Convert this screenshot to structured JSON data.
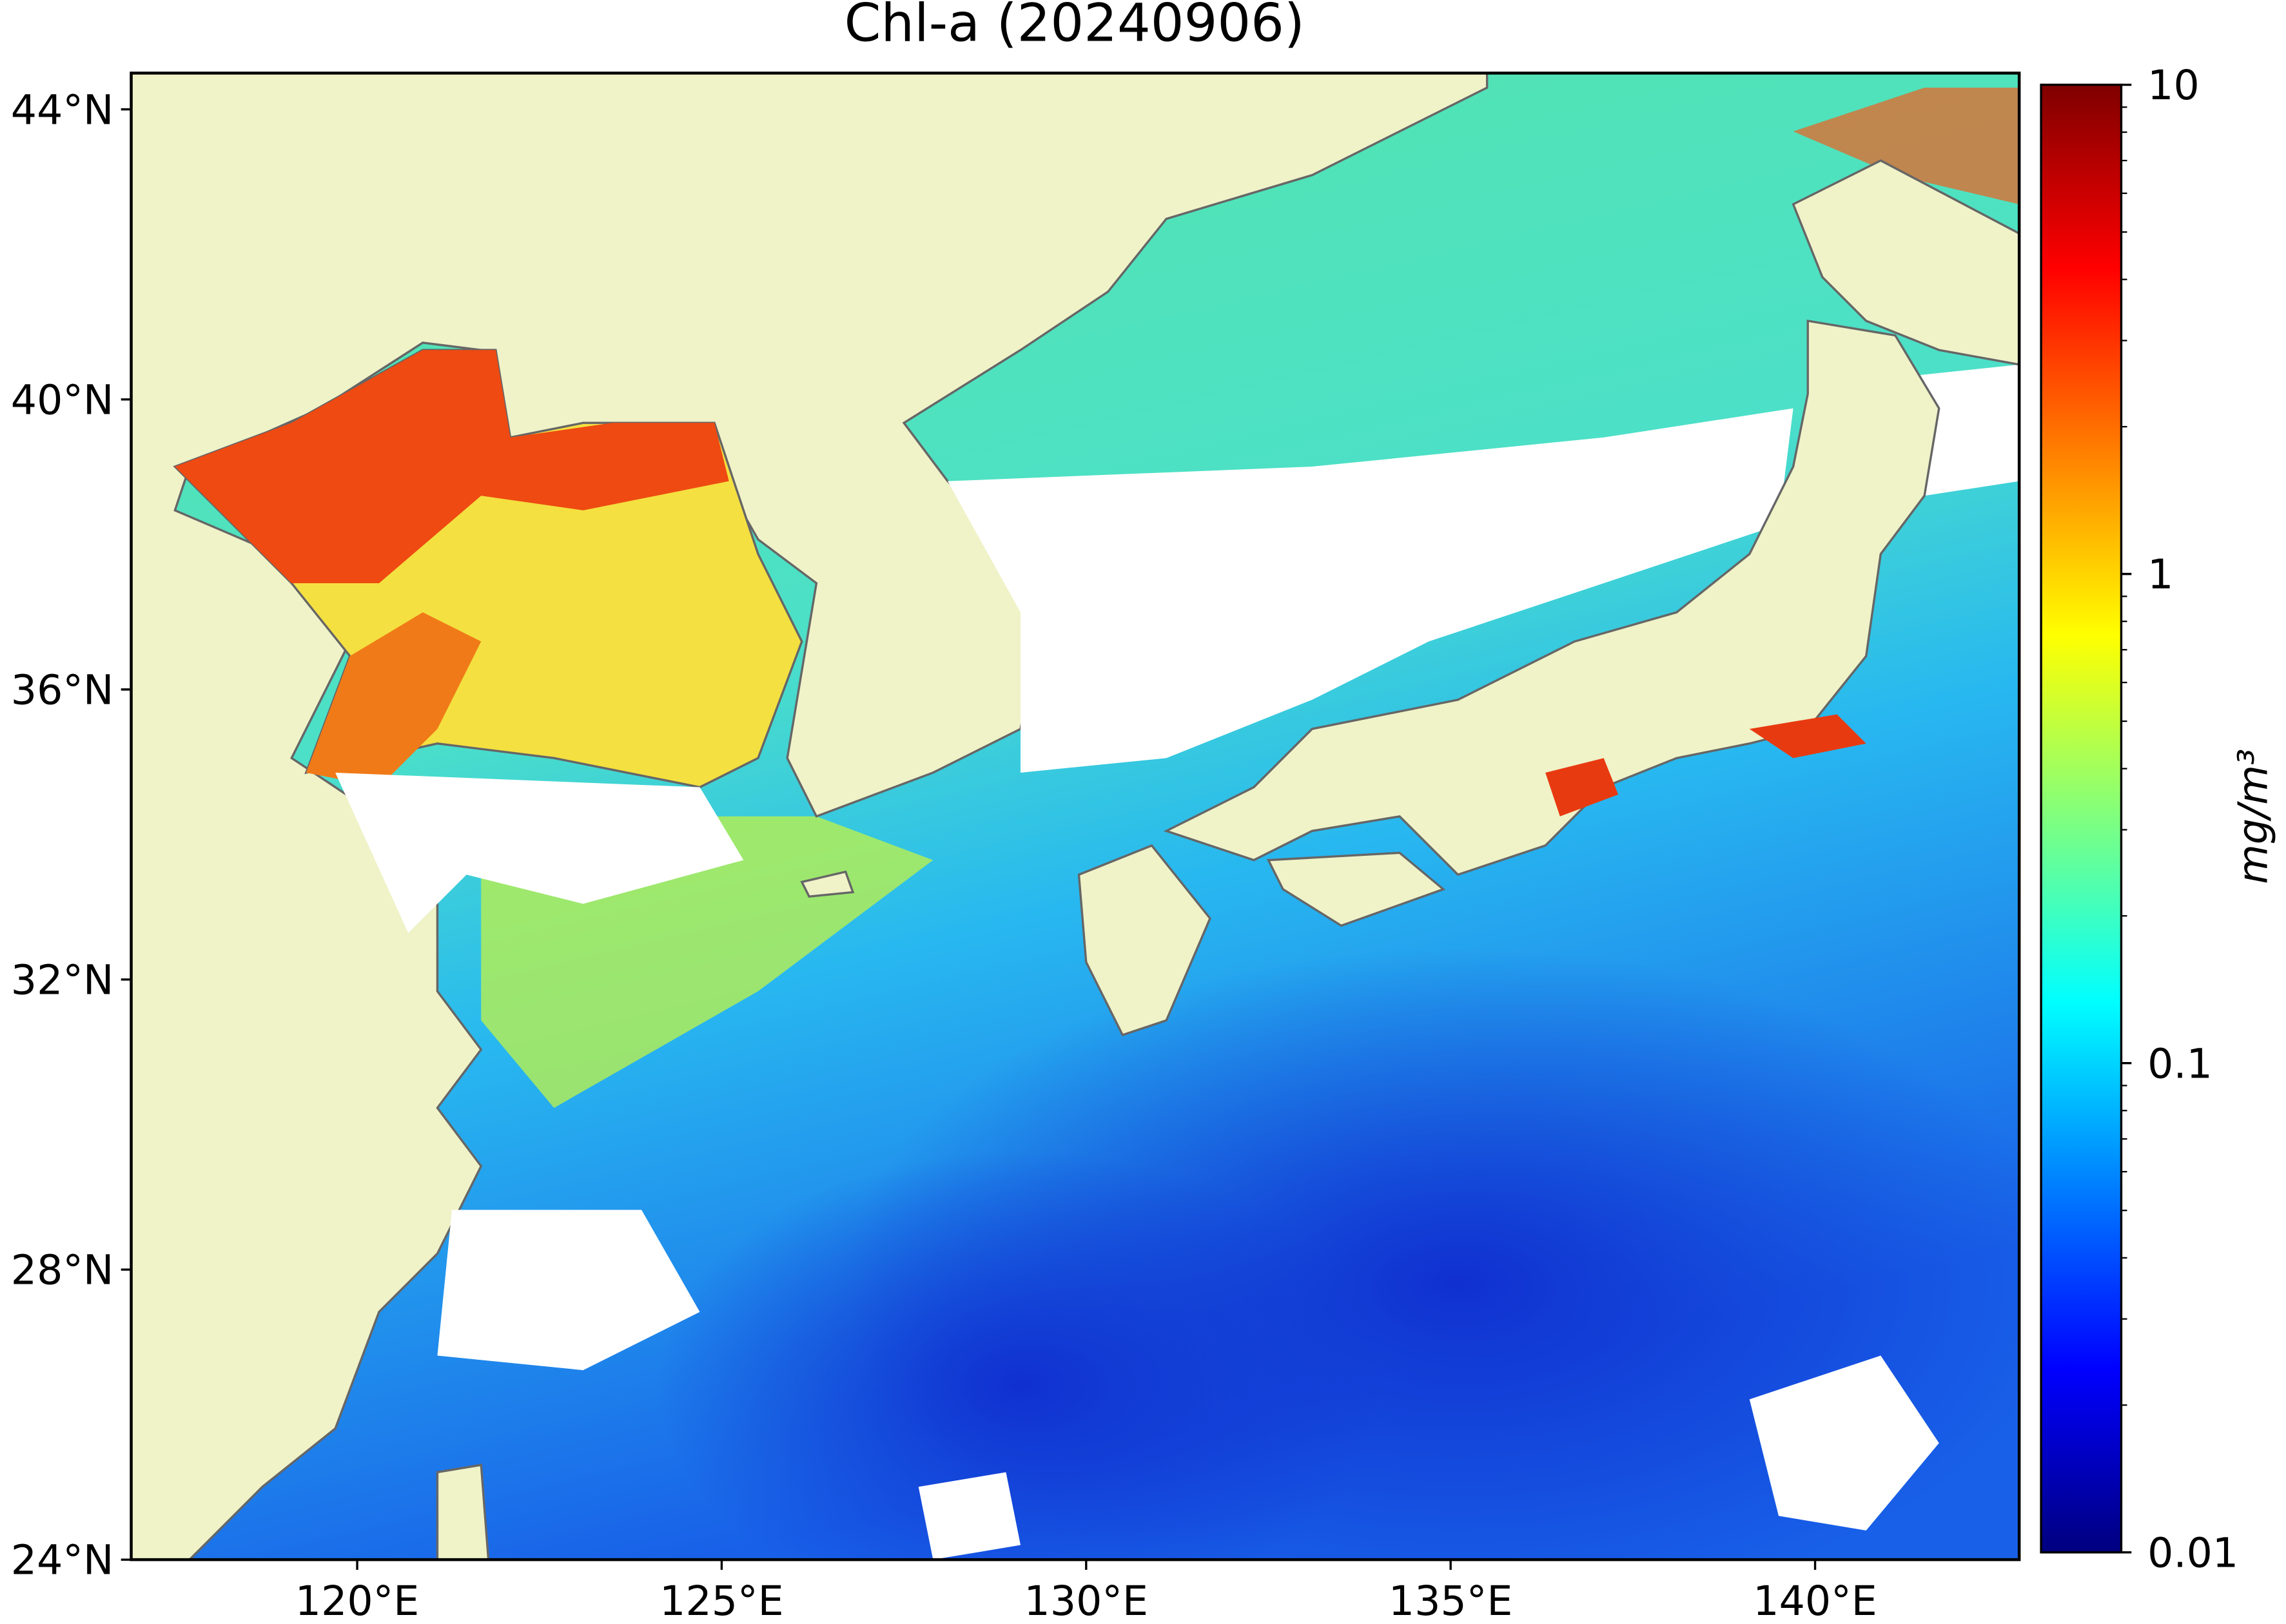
{
  "chart_data": {
    "type": "map",
    "title": "Chl-a (20240906)",
    "xlim": [
      116.9,
      142.8
    ],
    "ylim": [
      24,
      44.5
    ],
    "xticks": [
      {
        "value": 120,
        "label": "120°E"
      },
      {
        "value": 125,
        "label": "125°E"
      },
      {
        "value": 130,
        "label": "130°E"
      },
      {
        "value": 135,
        "label": "135°E"
      },
      {
        "value": 140,
        "label": "140°E"
      }
    ],
    "yticks": [
      {
        "value": 24,
        "label": "24°N"
      },
      {
        "value": 28,
        "label": "28°N"
      },
      {
        "value": 32,
        "label": "32°N"
      },
      {
        "value": 36,
        "label": "36°N"
      },
      {
        "value": 40,
        "label": "40°N"
      },
      {
        "value": 44,
        "label": "44°N"
      }
    ],
    "colorbar": {
      "label": "mg/m³",
      "scale": "log",
      "lim": [
        0.01,
        10
      ],
      "ticks": [
        0.01,
        0.1,
        1,
        10
      ],
      "colormap": "jet"
    }
  }
}
